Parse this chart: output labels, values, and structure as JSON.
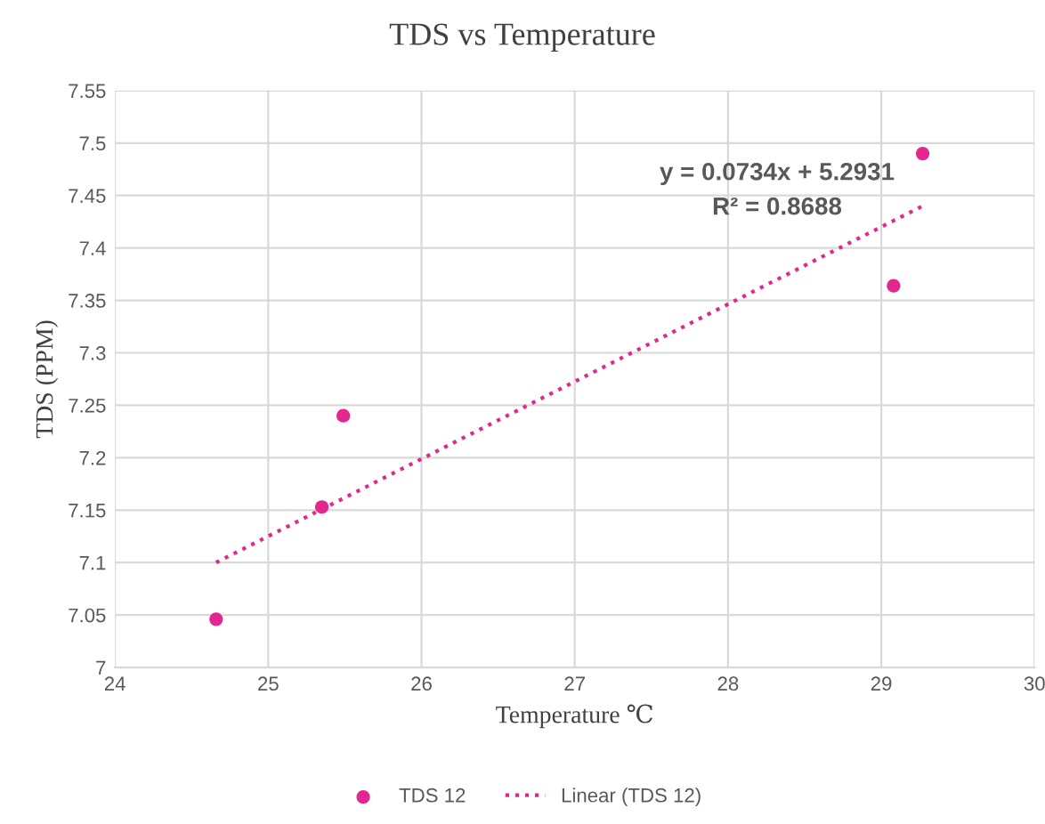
{
  "chart_data": {
    "type": "scatter",
    "title": "TDS vs Temperature",
    "xlabel": "Temperature ℃",
    "ylabel": "TDS (PPM)",
    "series": [
      {
        "name": "TDS 12",
        "color": "#e2278f",
        "marker": "circle",
        "x": [
          24.66,
          25.35,
          25.49,
          29.08,
          29.27
        ],
        "values": [
          7.046,
          7.153,
          7.24,
          7.364,
          7.49
        ]
      },
      {
        "name": "Linear (TDS 12)",
        "type": "line",
        "color": "#e2278f",
        "line_style": "dotted",
        "marker": "none",
        "x": [
          24.66,
          29.27
        ],
        "values": [
          7.1,
          7.44
        ]
      }
    ],
    "annotations": [
      "y = 0.0734x + 5.2931",
      "R² = 0.8688"
    ],
    "xlim": [
      24,
      30
    ],
    "xticks": [
      24,
      25,
      26,
      27,
      28,
      29,
      30
    ],
    "ylim": [
      7,
      7.55
    ],
    "yticks": [
      7,
      7.05,
      7.1,
      7.15,
      7.2,
      7.25,
      7.3,
      7.35,
      7.4,
      7.45,
      7.5,
      7.55
    ],
    "grid": true,
    "legend": "bottom"
  }
}
